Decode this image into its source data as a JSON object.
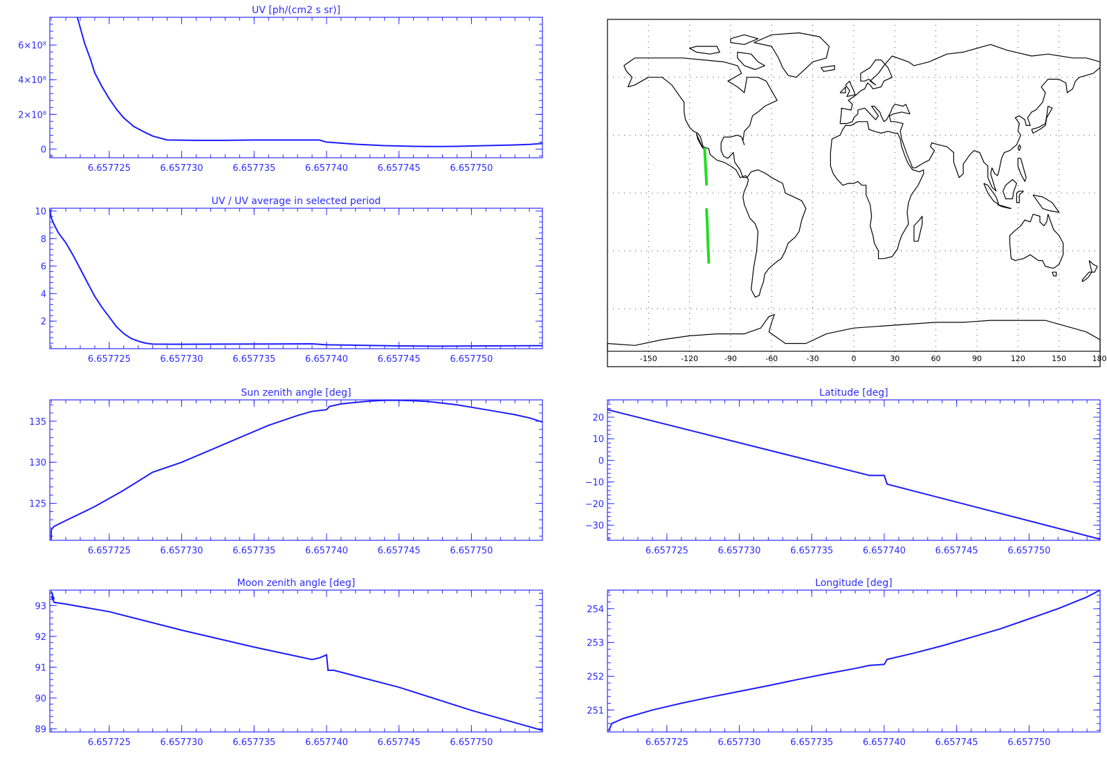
{
  "colors": {
    "axis": "#2b2bff",
    "line": "#1a1aff",
    "track": "#22dd22",
    "coast": "#000000",
    "map_grid": "#444444",
    "background": "#ffffff"
  },
  "chart_data": [
    {
      "id": "uv",
      "type": "line",
      "title": "UV [ph/(cm2 s sr)]",
      "xlim": [
        6.6577209,
        6.6577549
      ],
      "ylim": [
        -50000000,
        760000000
      ],
      "x_ticks": [
        6.657725,
        6.65773,
        6.657735,
        6.65774,
        6.657745,
        6.65775
      ],
      "x_tick_labels": [
        "6.657725",
        "6.657730",
        "6.657735",
        "6.657740",
        "6.657745",
        "6.657750"
      ],
      "y_ticks": [
        0,
        200000000,
        400000000,
        600000000
      ],
      "y_tick_labels": [
        "0",
        "2×10⁸",
        "4×10⁸",
        "6×10⁸"
      ],
      "series": [
        {
          "x": [
            6.6577228,
            6.657723,
            6.6577233,
            6.6577237,
            6.657724,
            6.6577245,
            6.657725,
            6.6577255,
            6.657726,
            6.6577267,
            6.6577275,
            6.657728,
            6.657729,
            6.657731,
            6.657733,
            6.657735,
            6.6577375,
            6.657739,
            6.6577395,
            6.65774,
            6.657741,
            6.657742,
            6.657743,
            6.657744,
            6.657745,
            6.657746,
            6.657747,
            6.657748,
            6.657749,
            6.65775,
            6.657751,
            6.657752,
            6.657753,
            6.657754,
            6.6577549
          ],
          "y": [
            760000000,
            700000000,
            610000000,
            520000000,
            440000000,
            360000000,
            290000000,
            230000000,
            180000000,
            130000000,
            95000000,
            75000000,
            52000000,
            50000000,
            50000000,
            52000000,
            52000000,
            52000000,
            52000000,
            40000000,
            34000000,
            28000000,
            24000000,
            20000000,
            18000000,
            16000000,
            15000000,
            15000000,
            16000000,
            18000000,
            20000000,
            22000000,
            24000000,
            27000000,
            32000000
          ]
        }
      ]
    },
    {
      "id": "uv-ratio",
      "type": "line",
      "title": "UV / UV average in selected period",
      "xlim": [
        6.6577209,
        6.6577549
      ],
      "ylim": [
        0,
        10.2
      ],
      "x_ticks": [
        6.657725,
        6.65773,
        6.657735,
        6.65774,
        6.657745,
        6.65775
      ],
      "x_tick_labels": [
        "6.657725",
        "6.657730",
        "6.657735",
        "6.657740",
        "6.657745",
        "6.657750"
      ],
      "y_ticks": [
        2,
        4,
        6,
        8,
        10
      ],
      "y_tick_labels": [
        "2",
        "4",
        "6",
        "8",
        "10"
      ],
      "series": [
        {
          "x": [
            6.6577209,
            6.657721,
            6.6577212,
            6.6577215,
            6.657722,
            6.6577225,
            6.657723,
            6.6577235,
            6.657724,
            6.6577245,
            6.657725,
            6.6577255,
            6.657726,
            6.6577265,
            6.657727,
            6.6577275,
            6.657728,
            6.65773,
            6.657733,
            6.657736,
            6.657739,
            6.65774,
            6.657742,
            6.657745,
            6.657748,
            6.657751,
            6.6577549
          ],
          "y": [
            10.1,
            9.5,
            9.0,
            8.4,
            7.7,
            6.8,
            5.8,
            4.8,
            3.8,
            3.0,
            2.3,
            1.6,
            1.1,
            0.75,
            0.55,
            0.4,
            0.33,
            0.32,
            0.33,
            0.34,
            0.35,
            0.28,
            0.25,
            0.2,
            0.18,
            0.2,
            0.22
          ]
        }
      ]
    },
    {
      "id": "sun-zenith",
      "type": "line",
      "title": "Sun zenith angle [deg]",
      "xlim": [
        6.6577209,
        6.6577549
      ],
      "ylim": [
        120.5,
        137.6
      ],
      "x_ticks": [
        6.657725,
        6.65773,
        6.657735,
        6.65774,
        6.657745,
        6.65775
      ],
      "x_tick_labels": [
        "6.657725",
        "6.657730",
        "6.657735",
        "6.657740",
        "6.657745",
        "6.657750"
      ],
      "y_ticks": [
        125,
        130,
        135
      ],
      "y_tick_labels": [
        "125",
        "130",
        "135"
      ],
      "series": [
        {
          "x": [
            6.657721,
            6.657721,
            6.6577212,
            6.657722,
            6.657724,
            6.657726,
            6.657728,
            6.65773,
            6.657732,
            6.657734,
            6.657736,
            6.657738,
            6.657739,
            6.65774,
            6.6577402,
            6.657741,
            6.657742,
            6.657743,
            6.657744,
            6.657745,
            6.657746,
            6.657747,
            6.657748,
            6.657749,
            6.65775,
            6.657751,
            6.657752,
            6.657753,
            6.657754,
            6.6577549
          ],
          "y": [
            120.6,
            121.8,
            122.2,
            122.9,
            124.6,
            126.6,
            128.8,
            130.0,
            131.5,
            133.0,
            134.5,
            135.7,
            136.2,
            136.4,
            136.8,
            137.1,
            137.3,
            137.45,
            137.55,
            137.55,
            137.5,
            137.4,
            137.2,
            137.0,
            136.7,
            136.4,
            136.1,
            135.8,
            135.4,
            134.9
          ]
        }
      ]
    },
    {
      "id": "latitude",
      "type": "line",
      "title": "Latitude [deg]",
      "xlim": [
        6.6577209,
        6.6577549
      ],
      "ylim": [
        -37,
        28
      ],
      "x_ticks": [
        6.657725,
        6.65773,
        6.657735,
        6.65774,
        6.657745,
        6.65775
      ],
      "x_tick_labels": [
        "6.657725",
        "6.657730",
        "6.657735",
        "6.657740",
        "6.657745",
        "6.657750"
      ],
      "y_ticks": [
        -30,
        -20,
        -10,
        0,
        10,
        20
      ],
      "y_tick_labels": [
        "−30",
        "−20",
        "−10",
        "0",
        "10",
        "20"
      ],
      "series": [
        {
          "x": [
            6.6577209,
            6.657739,
            6.65774,
            6.6577402,
            6.6577549
          ],
          "y": [
            23.5,
            -7.0,
            -7.0,
            -11.0,
            -36.5
          ]
        }
      ]
    },
    {
      "id": "moon-zenith",
      "type": "line",
      "title": "Moon zenith angle [deg]",
      "xlim": [
        6.6577209,
        6.6577549
      ],
      "ylim": [
        88.9,
        93.5
      ],
      "x_ticks": [
        6.657725,
        6.65773,
        6.657735,
        6.65774,
        6.657745,
        6.65775
      ],
      "x_tick_labels": [
        "6.657725",
        "6.657730",
        "6.657735",
        "6.657740",
        "6.657745",
        "6.657750"
      ],
      "y_ticks": [
        89,
        90,
        91,
        92,
        93
      ],
      "y_tick_labels": [
        "89",
        "90",
        "91",
        "92",
        "93"
      ],
      "series": [
        {
          "x": [
            6.657721,
            6.6577212,
            6.657721,
            6.6577212,
            6.657722,
            6.657725,
            6.65773,
            6.657735,
            6.657739,
            6.6577395,
            6.65774,
            6.6577401,
            6.6577405,
            6.657745,
            6.65775,
            6.6577549
          ],
          "y": [
            93.45,
            93.2,
            93.3,
            93.1,
            93.05,
            92.8,
            92.2,
            91.65,
            91.25,
            91.3,
            91.4,
            90.9,
            90.9,
            90.35,
            89.6,
            88.95
          ]
        }
      ]
    },
    {
      "id": "longitude",
      "type": "line",
      "title": "Longitude [deg]",
      "xlim": [
        6.6577209,
        6.6577549
      ],
      "ylim": [
        250.35,
        254.55
      ],
      "x_ticks": [
        6.657725,
        6.65773,
        6.657735,
        6.65774,
        6.657745,
        6.65775
      ],
      "x_tick_labels": [
        "6.657725",
        "6.657730",
        "6.657735",
        "6.657740",
        "6.657745",
        "6.657750"
      ],
      "y_ticks": [
        251,
        252,
        253,
        254
      ],
      "y_tick_labels": [
        "251",
        "252",
        "253",
        "254"
      ],
      "series": [
        {
          "x": [
            6.657721,
            6.6577212,
            6.6577213,
            6.657722,
            6.657724,
            6.657726,
            6.657728,
            6.65773,
            6.657732,
            6.657734,
            6.657736,
            6.657738,
            6.657739,
            6.65774,
            6.6577402,
            6.657742,
            6.657744,
            6.657746,
            6.657748,
            6.65775,
            6.657752,
            6.657754,
            6.6577549
          ],
          "y": [
            250.4,
            250.6,
            250.62,
            250.75,
            251.0,
            251.2,
            251.38,
            251.55,
            251.72,
            251.9,
            252.07,
            252.23,
            252.32,
            252.35,
            252.5,
            252.68,
            252.9,
            253.15,
            253.4,
            253.7,
            254.0,
            254.35,
            254.55
          ]
        }
      ]
    }
  ],
  "map": {
    "title": "",
    "lon_range": [
      -180,
      180
    ],
    "lat_range": [
      -90,
      90
    ],
    "x_tick_labels": [
      "-150",
      "-120",
      "-90",
      "-60",
      "-30",
      "0",
      "30",
      "60",
      "90",
      "120",
      "150",
      "180"
    ],
    "track_segments": [
      {
        "lon": [
          -109.0,
          -108.7,
          -108.4,
          -108.1,
          -107.8,
          -107.6
        ],
        "lat": [
          23.0,
          19.0,
          15.0,
          11.0,
          7.5,
          4.5
        ]
      },
      {
        "lon": [
          -107.6,
          -107.2,
          -106.9,
          -106.6,
          -106.3,
          -106.0
        ],
        "lat": [
          -8.5,
          -14.0,
          -20.0,
          -26.0,
          -31.0,
          -36.0
        ]
      }
    ]
  }
}
